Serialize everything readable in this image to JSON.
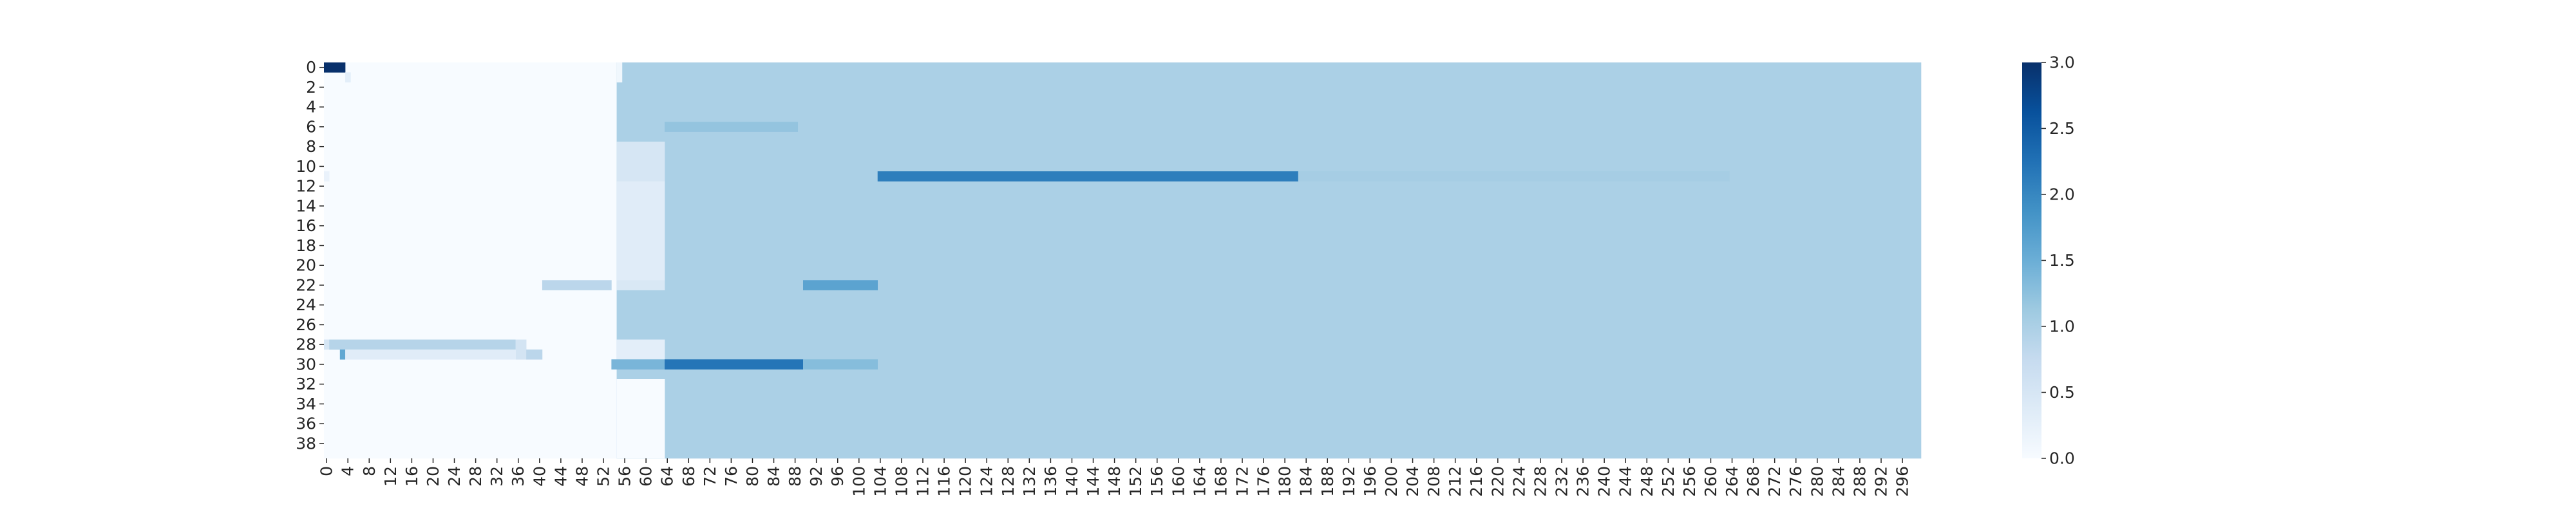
{
  "chart_data": {
    "type": "heatmap",
    "title": "",
    "xlabel": "",
    "ylabel": "",
    "n_cols": 300,
    "n_rows": 40,
    "x_tick_labels": [
      "0",
      "4",
      "8",
      "12",
      "16",
      "20",
      "24",
      "28",
      "32",
      "36",
      "40",
      "44",
      "48",
      "52",
      "56",
      "60",
      "64",
      "68",
      "72",
      "76",
      "80",
      "84",
      "88",
      "92",
      "96",
      "100",
      "104",
      "108",
      "112",
      "116",
      "120",
      "124",
      "128",
      "132",
      "136",
      "140",
      "144",
      "148",
      "152",
      "156",
      "160",
      "164",
      "168",
      "172",
      "176",
      "180",
      "184",
      "188",
      "192",
      "196",
      "200",
      "204",
      "208",
      "212",
      "216",
      "220",
      "224",
      "228",
      "232",
      "236",
      "240",
      "244",
      "248",
      "252",
      "256",
      "260",
      "264",
      "268",
      "272",
      "276",
      "280",
      "284",
      "288",
      "292",
      "296"
    ],
    "y_tick_labels": [
      "0",
      "2",
      "4",
      "6",
      "8",
      "10",
      "12",
      "14",
      "16",
      "18",
      "20",
      "22",
      "24",
      "26",
      "28",
      "30",
      "32",
      "34",
      "36",
      "38"
    ],
    "colorbar": {
      "colormap": "Blues",
      "vmin": 0,
      "vmax": 3.0,
      "tick_labels": [
        "0.0",
        "0.5",
        "1.0",
        "1.5",
        "2.0",
        "2.5",
        "3.0"
      ],
      "tick_values": [
        0,
        0.5,
        1.0,
        1.5,
        2.0,
        2.5,
        3.0
      ]
    },
    "background_value": 1.0,
    "cells_note_regions": [
      {
        "rows": [
          0,
          39
        ],
        "cols": [
          0,
          54
        ],
        "value": 0.0
      },
      {
        "rows": [
          0,
          39
        ],
        "cols": [
          55,
          299
        ],
        "value": 1.0
      },
      {
        "rows": [
          0,
          39
        ],
        "cols": [
          55,
          63
        ],
        "value": 1.0
      },
      {
        "rows": [
          0,
          1
        ],
        "cols": [
          55,
          55
        ],
        "value": 0.1
      },
      {
        "rows": [
          12,
          21
        ],
        "cols": [
          55,
          63
        ],
        "value": 0.35
      },
      {
        "rows": [
          8,
          11
        ],
        "cols": [
          55,
          63
        ],
        "value": 0.5
      },
      {
        "rows": [
          32,
          39
        ],
        "cols": [
          55,
          63
        ],
        "value": 0.0
      },
      {
        "rows": [
          28,
          29
        ],
        "cols": [
          55,
          63
        ],
        "value": 0.3
      },
      {
        "rows": [
          22,
          22
        ],
        "cols": [
          55,
          63
        ],
        "value": 0.45
      },
      {
        "rows": [
          0,
          0
        ],
        "cols": [
          0,
          3
        ],
        "value": 3.0
      },
      {
        "rows": [
          1,
          1
        ],
        "cols": [
          4,
          4
        ],
        "value": 0.3
      },
      {
        "rows": [
          11,
          11
        ],
        "cols": [
          0,
          0
        ],
        "value": 0.2
      },
      {
        "rows": [
          6,
          6
        ],
        "cols": [
          64,
          88
        ],
        "value": 1.2
      },
      {
        "rows": [
          11,
          11
        ],
        "cols": [
          104,
          182
        ],
        "value": 2.1
      },
      {
        "rows": [
          11,
          11
        ],
        "cols": [
          183,
          263
        ],
        "value": 1.05
      },
      {
        "rows": [
          22,
          22
        ],
        "cols": [
          41,
          53
        ],
        "value": 0.85
      },
      {
        "rows": [
          22,
          22
        ],
        "cols": [
          90,
          103
        ],
        "value": 1.65
      },
      {
        "rows": [
          28,
          28
        ],
        "cols": [
          0,
          0
        ],
        "value": 0.5
      },
      {
        "rows": [
          28,
          28
        ],
        "cols": [
          1,
          35
        ],
        "value": 0.9
      },
      {
        "rows": [
          28,
          29
        ],
        "cols": [
          36,
          37
        ],
        "value": 0.55
      },
      {
        "rows": [
          29,
          29
        ],
        "cols": [
          38,
          40
        ],
        "value": 0.85
      },
      {
        "rows": [
          29,
          29
        ],
        "cols": [
          3,
          3
        ],
        "value": 1.6
      },
      {
        "rows": [
          29,
          29
        ],
        "cols": [
          4,
          35
        ],
        "value": 0.35
      },
      {
        "rows": [
          30,
          30
        ],
        "cols": [
          54,
          63
        ],
        "value": 1.4
      },
      {
        "rows": [
          30,
          30
        ],
        "cols": [
          64,
          89
        ],
        "value": 2.2
      },
      {
        "rows": [
          30,
          30
        ],
        "cols": [
          90,
          103
        ],
        "value": 1.3
      }
    ]
  }
}
